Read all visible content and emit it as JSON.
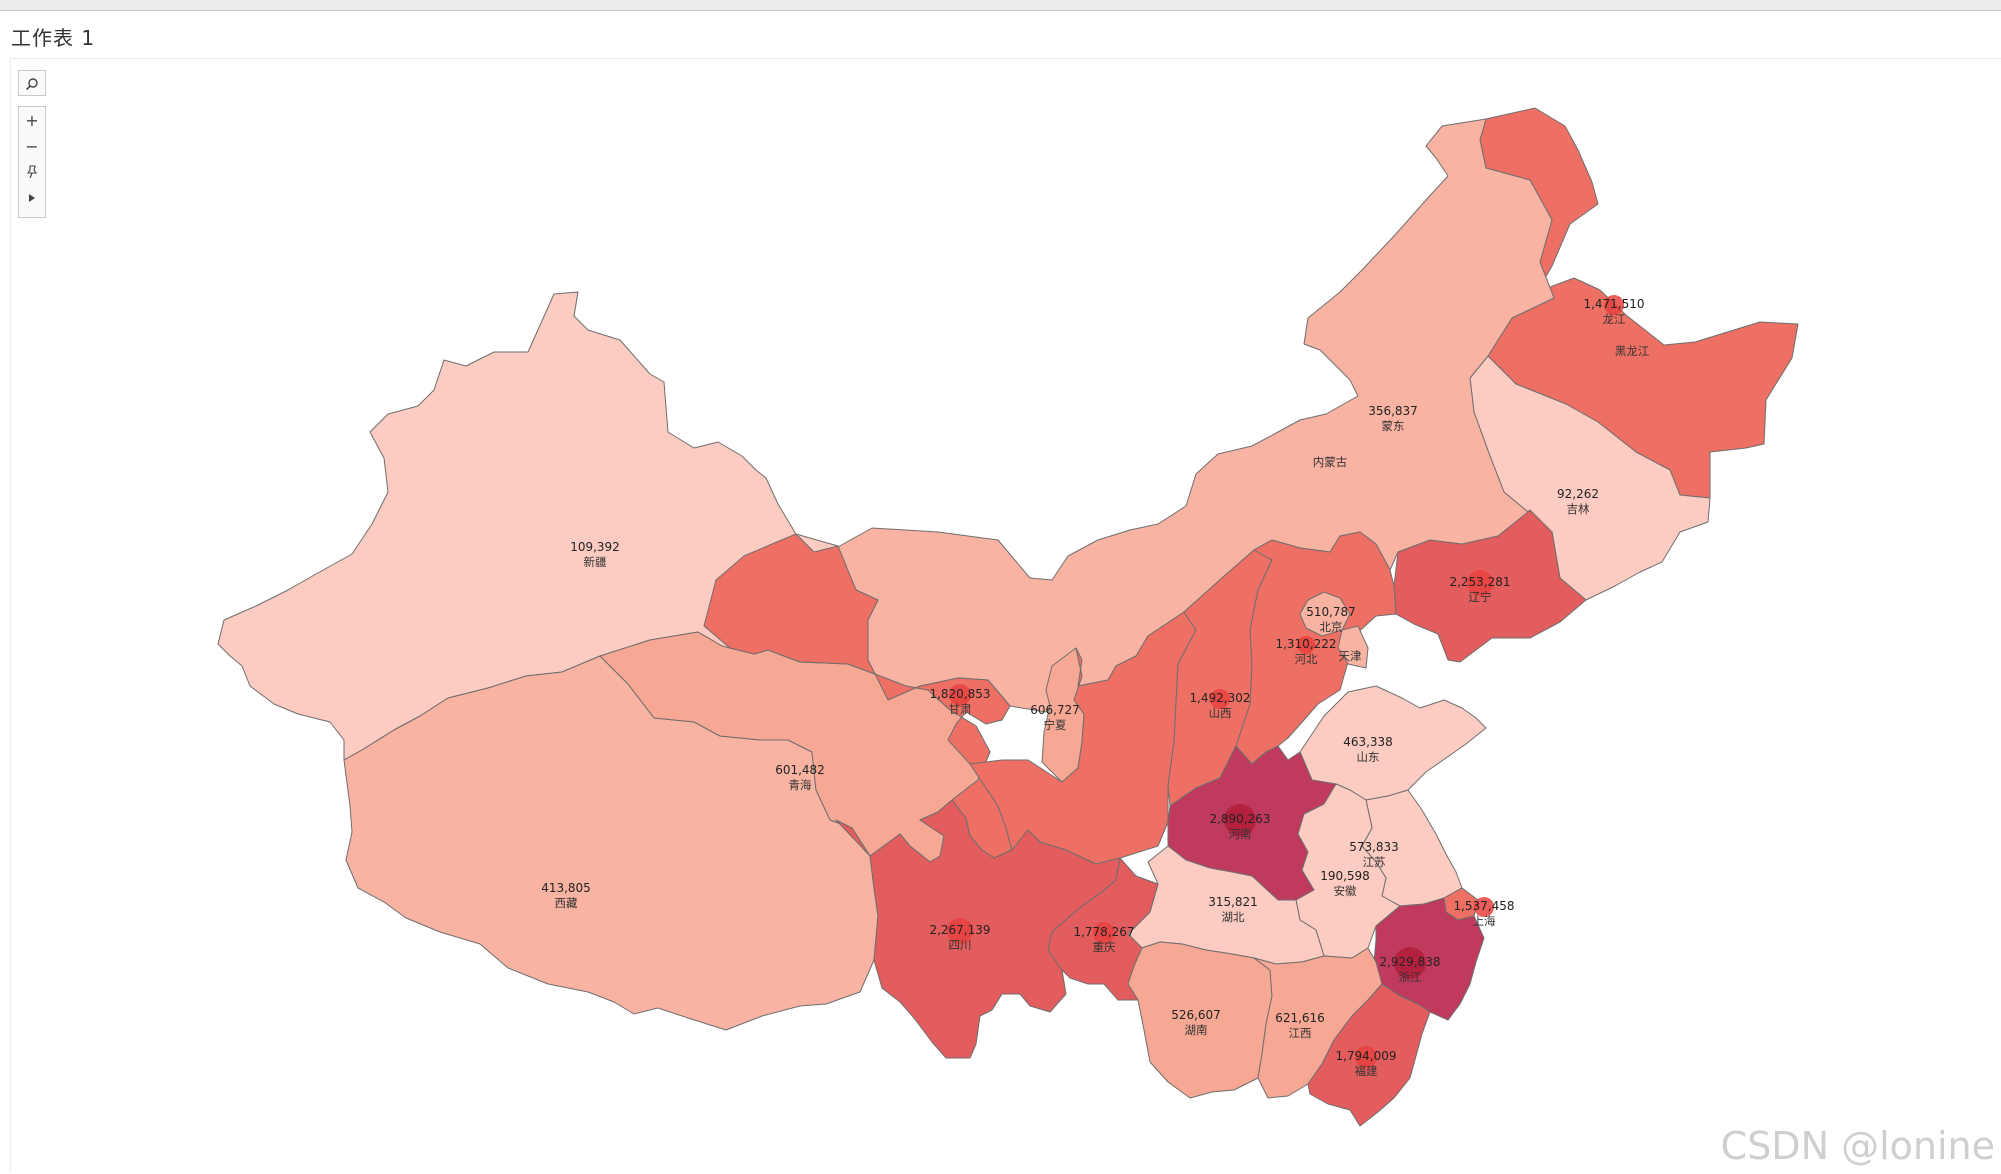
{
  "sheet_title": "工作表 1",
  "watermark": "CSDN @lonine",
  "toolbar": {
    "search_icon": "magnifier-icon",
    "zoom_in_icon": "plus-icon",
    "zoom_out_icon": "minus-icon",
    "pin_icon": "pin-icon",
    "expand_icon": "play-triangle-icon",
    "zoom_in_label": "+",
    "zoom_out_label": "−"
  },
  "colors": {
    "lightest": "#FCCBC1",
    "light": "#F9B3A2",
    "mid_light": "#F6A894",
    "mid": "#EE7064",
    "mid_dark": "#E35C5E",
    "dark": "#C03A5E",
    "border": "#6e6e6e",
    "circle_dark": "#B21D3A",
    "circle_light": "#E7413E"
  },
  "provinces": [
    {
      "id": "heilongjiang",
      "name": "黑龙江",
      "value": null,
      "color": "mid"
    },
    {
      "id": "heilongjiang-mark",
      "name": "龙江",
      "value": "1,471,510",
      "color": "mid"
    },
    {
      "id": "jilin",
      "name": "吉林",
      "value": "92,262",
      "color": "lightest"
    },
    {
      "id": "liaoning",
      "name": "辽宁",
      "value": "2,253,281",
      "color": "mid_dark"
    },
    {
      "id": "neimenggu",
      "name": "内蒙古",
      "value": null,
      "color": "light"
    },
    {
      "id": "mengdong",
      "name": "蒙东",
      "value": "356,837",
      "color": "light"
    },
    {
      "id": "xinjiang",
      "name": "新疆",
      "value": "109,392",
      "color": "lightest"
    },
    {
      "id": "xizang",
      "name": "西藏",
      "value": "413,805",
      "color": "light"
    },
    {
      "id": "qinghai",
      "name": "青海",
      "value": "601,482",
      "color": "mid_light"
    },
    {
      "id": "gansu",
      "name": "甘肃",
      "value": "1,820,853",
      "color": "mid"
    },
    {
      "id": "ningxia",
      "name": "宁夏",
      "value": "606,727",
      "color": "mid_light"
    },
    {
      "id": "shaanxi",
      "name": "",
      "value": null,
      "color": "mid"
    },
    {
      "id": "shanxi",
      "name": "山西",
      "value": "1,492,302",
      "color": "mid"
    },
    {
      "id": "hebei",
      "name": "河北",
      "value": "1,310,222",
      "color": "mid"
    },
    {
      "id": "beijing",
      "name": "北京",
      "value": "510,787",
      "color": "light"
    },
    {
      "id": "tianjin",
      "name": "天津",
      "value": null,
      "color": "light"
    },
    {
      "id": "shandong",
      "name": "山东",
      "value": "463,338",
      "color": "lightest"
    },
    {
      "id": "henan",
      "name": "河南",
      "value": "2,890,263",
      "color": "dark"
    },
    {
      "id": "jiangsu",
      "name": "江苏",
      "value": "573,833",
      "color": "lightest"
    },
    {
      "id": "anhui",
      "name": "安徽",
      "value": "190,598",
      "color": "lightest"
    },
    {
      "id": "shanghai",
      "name": "上海",
      "value": "1,537,458",
      "color": "mid"
    },
    {
      "id": "zhejiang",
      "name": "浙江",
      "value": "2,929,838",
      "color": "dark"
    },
    {
      "id": "hubei",
      "name": "湖北",
      "value": "315,821",
      "color": "lightest"
    },
    {
      "id": "sichuan",
      "name": "四川",
      "value": "2,267,139",
      "color": "mid_dark"
    },
    {
      "id": "chongqing",
      "name": "重庆",
      "value": "1,778,267",
      "color": "mid_dark"
    },
    {
      "id": "hunan",
      "name": "湖南",
      "value": "526,607",
      "color": "mid_light"
    },
    {
      "id": "jiangxi",
      "name": "江西",
      "value": "621,616",
      "color": "mid_light"
    },
    {
      "id": "fujian",
      "name": "福建",
      "value": "1,794,009",
      "color": "mid_dark"
    }
  ]
}
